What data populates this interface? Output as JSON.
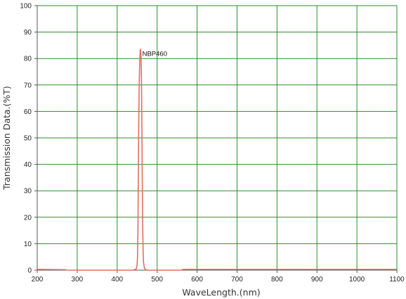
{
  "chart_data": {
    "type": "line",
    "title": "",
    "xlabel": "WaveLength.(nm)",
    "ylabel": "Transmission Data.(%T)",
    "xlim": [
      200,
      1100
    ],
    "ylim": [
      0,
      100
    ],
    "x_ticks": [
      200,
      300,
      400,
      500,
      600,
      700,
      800,
      900,
      1000,
      1100
    ],
    "y_ticks": [
      0,
      10,
      20,
      30,
      40,
      50,
      60,
      70,
      80,
      90,
      100
    ],
    "grid": true,
    "grid_color": "#2e8b2e",
    "annotations": [
      {
        "text": "NBP460",
        "x": 463,
        "y": 81
      }
    ],
    "series": [
      {
        "color": "#e07060",
        "points": [
          [
            200,
            0.3
          ],
          [
            270,
            0.2
          ],
          [
            275,
            0.0
          ],
          [
            300,
            0.0
          ],
          [
            350,
            0.0
          ],
          [
            400,
            0.0
          ],
          [
            440,
            0.0
          ],
          [
            448,
            0.5
          ],
          [
            450,
            2
          ],
          [
            451,
            5
          ],
          [
            452,
            15
          ],
          [
            453,
            35
          ],
          [
            454,
            55
          ],
          [
            455,
            68
          ],
          [
            456,
            76
          ],
          [
            457,
            81
          ],
          [
            458,
            83.5
          ],
          [
            459,
            83
          ],
          [
            460,
            80
          ],
          [
            461,
            70
          ],
          [
            462,
            52
          ],
          [
            463,
            32
          ],
          [
            464,
            16
          ],
          [
            465,
            7
          ],
          [
            466,
            3
          ],
          [
            468,
            1
          ],
          [
            470,
            0.3
          ],
          [
            475,
            0.0
          ],
          [
            500,
            0.0
          ],
          [
            560,
            0.0
          ],
          [
            565,
            0.3
          ],
          [
            700,
            0.3
          ],
          [
            900,
            0.3
          ],
          [
            1100,
            0.3
          ]
        ]
      }
    ]
  }
}
